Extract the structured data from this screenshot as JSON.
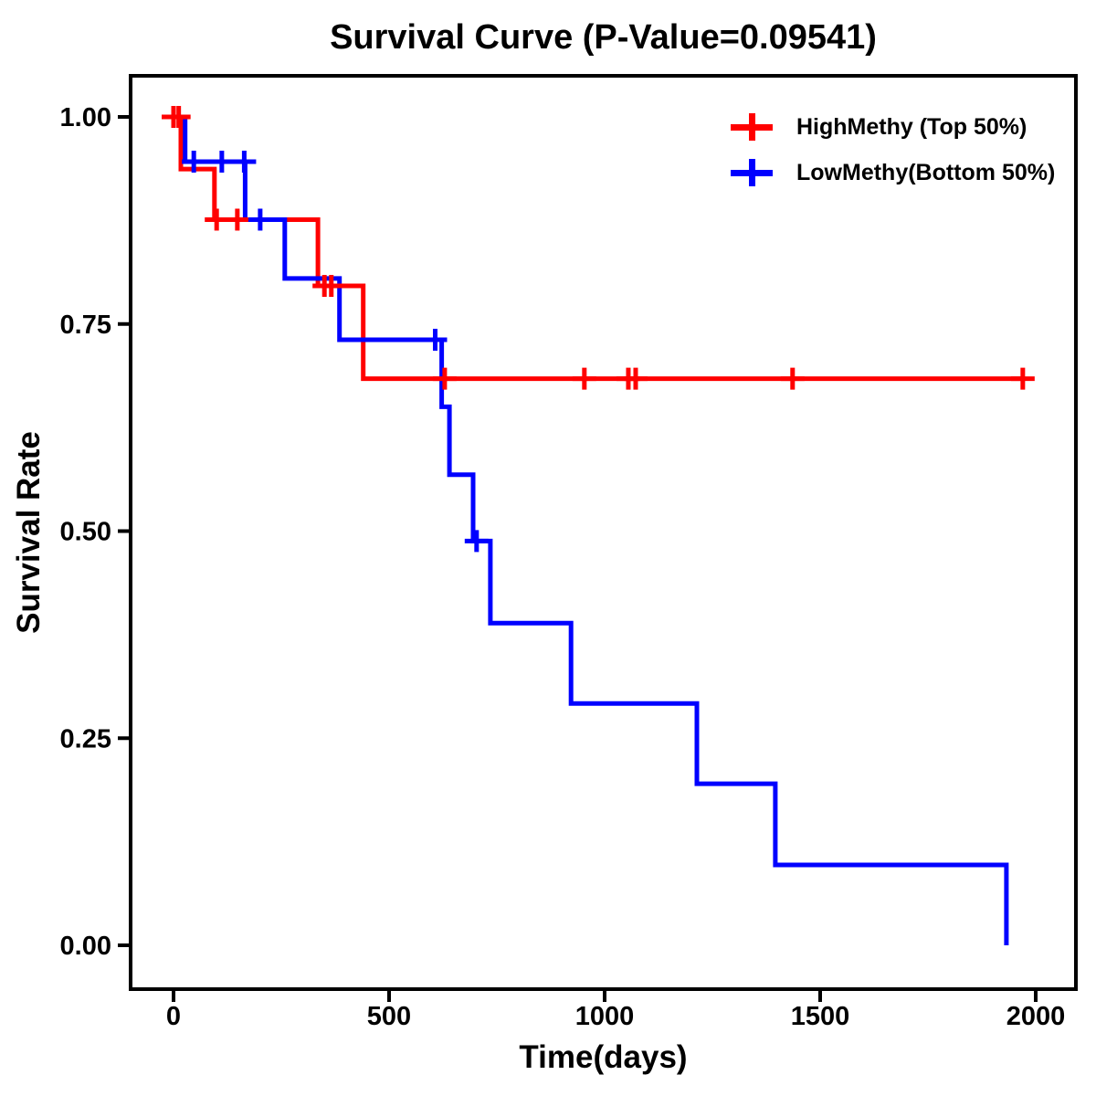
{
  "chart_data": {
    "type": "line",
    "subtype": "kaplan-meier-step-survival",
    "title": "Survival Curve (P-Value=0.09541)",
    "p_value": 0.09541,
    "xlabel": "Time(days)",
    "ylabel": "Survival Rate",
    "xlim": [
      0,
      2000
    ],
    "ylim": [
      0.0,
      1.0
    ],
    "grid": false,
    "legend_position": "top-right-inside",
    "x_ticks": [
      0,
      500,
      1000,
      1500,
      2000
    ],
    "x_tick_labels": [
      "0",
      "500",
      "1000",
      "1500",
      "2000"
    ],
    "y_ticks": [
      1.0,
      0.75,
      0.5,
      0.25,
      0.0
    ],
    "y_tick_labels": [
      "1.00",
      "0.75",
      "0.50",
      "0.25",
      "0.00"
    ],
    "axis_color": "#000000",
    "series": [
      {
        "name": "HighMethy (Top 50%)",
        "color": "#FF0000",
        "points": [
          [
            0,
            1.0
          ],
          [
            17,
            1.0
          ],
          [
            17,
            0.937
          ],
          [
            95,
            0.937
          ],
          [
            95,
            0.876
          ],
          [
            335,
            0.876
          ],
          [
            335,
            0.796
          ],
          [
            440,
            0.796
          ],
          [
            440,
            0.684
          ],
          [
            1970,
            0.684
          ]
        ],
        "censor_marks": [
          [
            0,
            1.0
          ],
          [
            12,
            1.0
          ],
          [
            100,
            0.876
          ],
          [
            148,
            0.876
          ],
          [
            350,
            0.796
          ],
          [
            366,
            0.796
          ],
          [
            629,
            0.684
          ],
          [
            953,
            0.684
          ],
          [
            1055,
            0.684
          ],
          [
            1072,
            0.684
          ],
          [
            1436,
            0.684
          ],
          [
            1970,
            0.684
          ]
        ]
      },
      {
        "name": "LowMethy(Bottom 50%)",
        "color": "#0000FF",
        "points": [
          [
            0,
            1.0
          ],
          [
            27,
            1.0
          ],
          [
            27,
            0.946
          ],
          [
            166,
            0.946
          ],
          [
            166,
            0.876
          ],
          [
            258,
            0.876
          ],
          [
            258,
            0.805
          ],
          [
            385,
            0.805
          ],
          [
            385,
            0.731
          ],
          [
            622,
            0.731
          ],
          [
            622,
            0.65
          ],
          [
            640,
            0.65
          ],
          [
            640,
            0.568
          ],
          [
            695,
            0.568
          ],
          [
            695,
            0.488
          ],
          [
            735,
            0.488
          ],
          [
            735,
            0.389
          ],
          [
            922,
            0.389
          ],
          [
            922,
            0.292
          ],
          [
            1214,
            0.292
          ],
          [
            1214,
            0.195
          ],
          [
            1396,
            0.195
          ],
          [
            1396,
            0.097
          ],
          [
            1932,
            0.097
          ],
          [
            1932,
            0.0
          ]
        ],
        "censor_marks": [
          [
            47,
            0.946
          ],
          [
            112,
            0.946
          ],
          [
            164,
            0.946
          ],
          [
            201,
            0.876
          ],
          [
            607,
            0.731
          ],
          [
            703,
            0.488
          ]
        ]
      }
    ]
  }
}
